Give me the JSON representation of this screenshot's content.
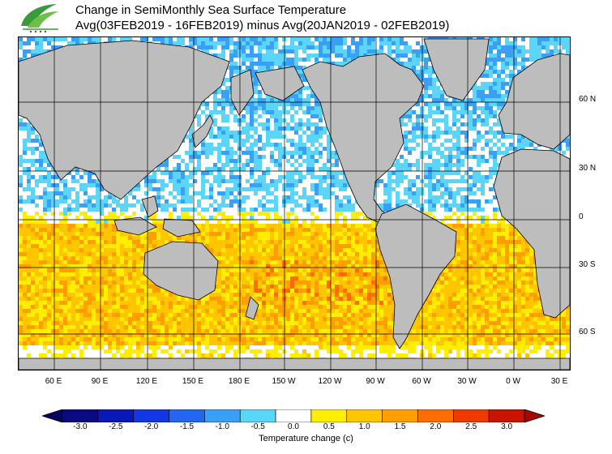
{
  "header": {
    "title_line1": "Change in SemiMonthly Sea Surface Temperature",
    "title_line2": "Avg(03FEB2019 - 16FEB2019) minus Avg(20JAN2019 - 02FEB2019)"
  },
  "map": {
    "lat_labels": [
      "60 N",
      "30 N",
      "0",
      "30 S",
      "60 S"
    ],
    "lon_labels": [
      "60 E",
      "90 E",
      "120 E",
      "150 E",
      "180 E",
      "150 W",
      "120 W",
      "90 W",
      "60 W",
      "30 W",
      "0 W",
      "30 E"
    ],
    "colors": {
      "land": "#bdbdbd",
      "ice": "#dcdcdc",
      "grid": "#000000"
    }
  },
  "colorbar": {
    "ticks": [
      "-3.0",
      "-2.5",
      "-2.0",
      "-1.5",
      "-1.0",
      "-0.5",
      "0.0",
      "0.5",
      "1.0",
      "1.5",
      "2.0",
      "2.5",
      "3.0"
    ],
    "colors": [
      "#0a0a82",
      "#0b18b8",
      "#1437e6",
      "#2266f2",
      "#3aa0f5",
      "#5bd6f8",
      "#ffffff",
      "#ffee00",
      "#ffc600",
      "#ff9e00",
      "#ff6c00",
      "#ee3a00",
      "#c81400"
    ],
    "label": "Temperature change (c)"
  }
}
